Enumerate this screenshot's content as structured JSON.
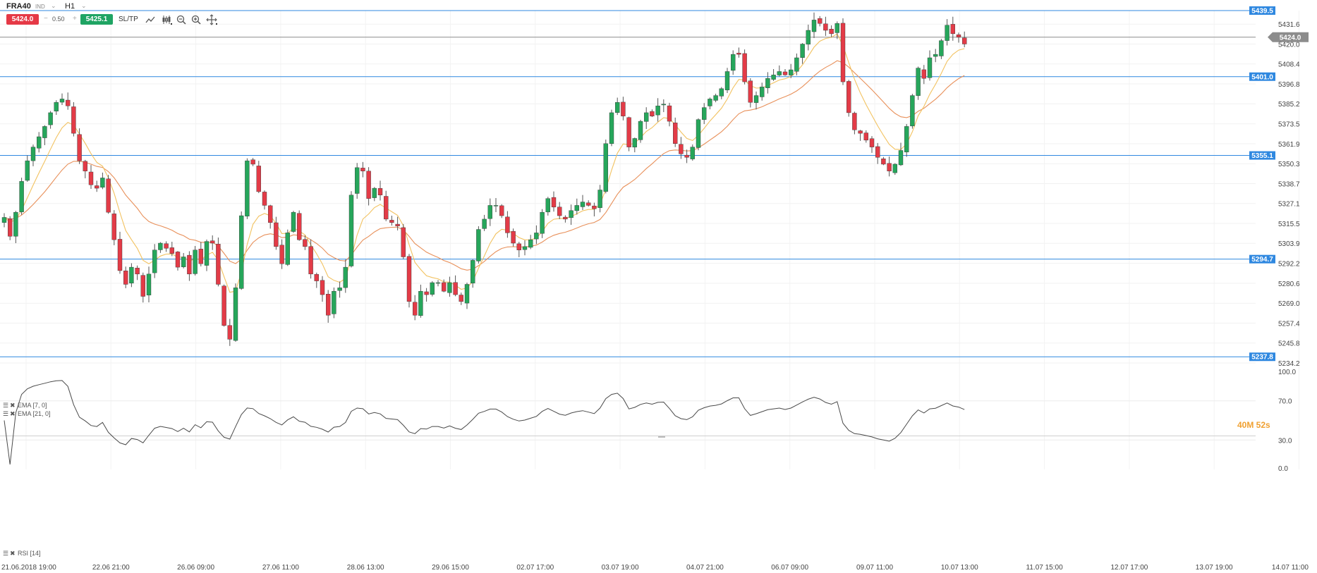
{
  "toolbar": {
    "symbol": "FRA40",
    "exchange": "IND",
    "timeframe": "H1",
    "sell_price": "5424.0",
    "quantity": "0.50",
    "buy_price": "5425.1",
    "sltp_label": "SL/TP",
    "minus": "−",
    "plus": "+",
    "dropdown": "⌄",
    "tools": [
      "line-tool-icon",
      "candle-type-icon",
      "zoom-out-icon",
      "zoom-in-icon",
      "crosshair-icon"
    ]
  },
  "chart_data": {
    "type": "candlestick",
    "price_axis": {
      "ylim": [
        5234.2,
        5439.5
      ],
      "ticks": [
        "5431.6",
        "5420.0",
        "5408.4",
        "5396.8",
        "5385.2",
        "5373.5",
        "5361.9",
        "5350.3",
        "5338.7",
        "5327.1",
        "5315.5",
        "5303.9",
        "5292.2",
        "5280.6",
        "5269.0",
        "5257.4",
        "5245.8",
        "5234.2"
      ]
    },
    "time_axis": {
      "labels": [
        "21.06.2018 19:00",
        "22.06 21:00",
        "26.06 09:00",
        "27.06 11:00",
        "28.06 13:00",
        "29.06 15:00",
        "02.07 17:00",
        "03.07 19:00",
        "04.07 21:00",
        "06.07 09:00",
        "09.07 11:00",
        "10.07 13:00",
        "11.07 15:00",
        "12.07 17:00",
        "13.07 19:00",
        "14.07 11:00"
      ]
    },
    "horizontal_levels": [
      {
        "value": 5439.5,
        "label": "5439.5",
        "color": "#2f88e0"
      },
      {
        "value": 5401.0,
        "label": "5401.0",
        "color": "#2f88e0"
      },
      {
        "value": 5355.1,
        "label": "5355.1",
        "color": "#2f88e0"
      },
      {
        "value": 5294.7,
        "label": "5294.7",
        "color": "#2f88e0"
      },
      {
        "value": 5237.8,
        "label": "5237.8",
        "color": "#2f88e0"
      }
    ],
    "current_price": {
      "value": 5424.0,
      "label": "5424.0",
      "color": "#8c8c8c"
    },
    "countdown": "40M 52s",
    "closes": [
      5319,
      5308,
      5322,
      5340,
      5352,
      5360,
      5366,
      5372,
      5380,
      5386,
      5388,
      5384,
      5368,
      5352,
      5346,
      5338,
      5336,
      5342,
      5322,
      5306,
      5288,
      5280,
      5290,
      5286,
      5273,
      5286,
      5300,
      5304,
      5301,
      5298,
      5290,
      5296,
      5286,
      5300,
      5292,
      5305,
      5304,
      5280,
      5256,
      5248,
      5278,
      5320,
      5352,
      5350,
      5334,
      5326,
      5316,
      5302,
      5292,
      5310,
      5322,
      5306,
      5302,
      5286,
      5282,
      5274,
      5262,
      5276,
      5278,
      5290,
      5332,
      5348,
      5346,
      5330,
      5336,
      5332,
      5318,
      5316,
      5314,
      5296,
      5270,
      5262,
      5276,
      5274,
      5281,
      5281,
      5276,
      5281,
      5274,
      5270,
      5280,
      5294,
      5312,
      5318,
      5326,
      5326,
      5320,
      5310,
      5304,
      5300,
      5302,
      5306,
      5310,
      5322,
      5330,
      5325,
      5320,
      5318,
      5323,
      5326,
      5328,
      5326,
      5324,
      5335,
      5362,
      5380,
      5386,
      5378,
      5360,
      5365,
      5375,
      5380,
      5378,
      5384,
      5385,
      5375,
      5362,
      5356,
      5354,
      5360,
      5376,
      5383,
      5388,
      5390,
      5394,
      5404,
      5414,
      5414,
      5398,
      5386,
      5390,
      5395,
      5400,
      5402,
      5404,
      5402,
      5405,
      5412,
      5420,
      5428,
      5434,
      5432,
      5428,
      5426,
      5432,
      5398,
      5380,
      5370,
      5368,
      5364,
      5360,
      5354,
      5350,
      5346,
      5350,
      5358,
      5372,
      5390,
      5406,
      5400,
      5412,
      5414,
      5422,
      5431,
      5426,
      5424,
      5420
    ]
  },
  "indicators": {
    "ema_fast": {
      "label": "EMA [7, 0]",
      "period": 7,
      "color": "#f2c260"
    },
    "ema_slow": {
      "label": "EMA [21, 0]",
      "period": 21,
      "color": "#e8905a"
    },
    "rsi": {
      "label": "RSI [14]",
      "color": "#4a4a4a",
      "ylim": [
        0,
        100
      ],
      "ticks": [
        "100.0",
        "70.0",
        "30.0",
        "0.0"
      ]
    }
  }
}
